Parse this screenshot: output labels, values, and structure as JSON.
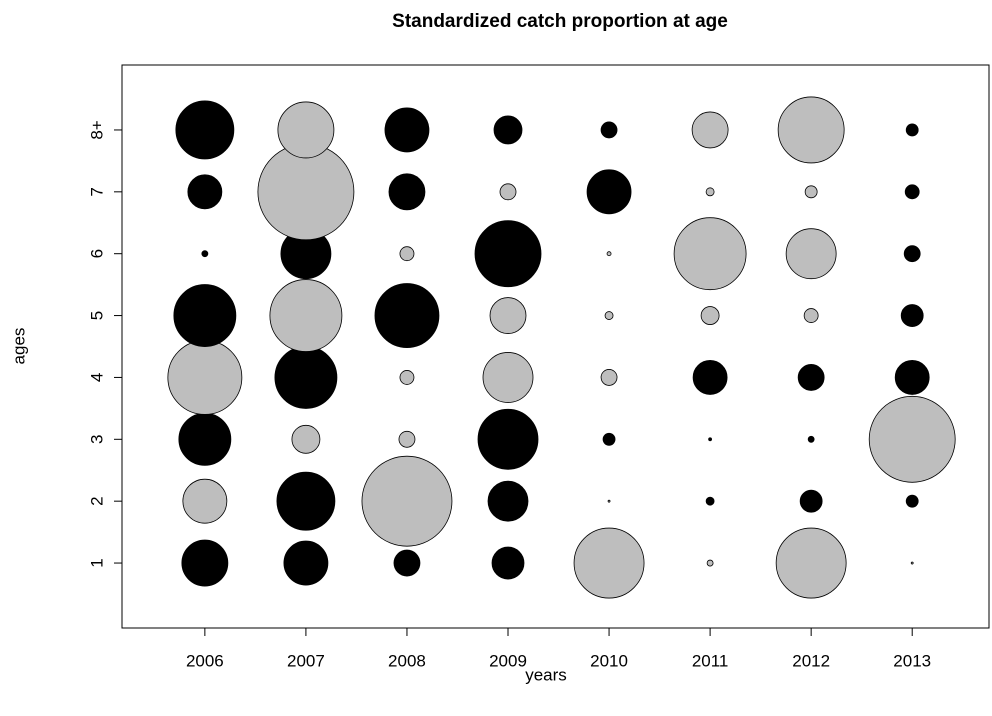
{
  "chart_data": {
    "type": "bubble",
    "title": "Standardized catch proportion at age",
    "x_label": "years",
    "y_label": "ages",
    "x": [
      2006,
      2007,
      2008,
      2009,
      2010,
      2011,
      2012,
      2013
    ],
    "y": [
      1,
      2,
      3,
      4,
      5,
      6,
      7,
      8
    ],
    "values": [
      [
        -2.3,
        -2.2,
        -1.3,
        -1.6,
        3.5,
        0.3,
        3.5,
        0.1
      ],
      [
        2.2,
        -2.9,
        4.5,
        -2.0,
        0.1,
        -0.4,
        -1.1,
        -0.6
      ],
      [
        -2.6,
        1.4,
        0.8,
        -3.0,
        -0.6,
        -0.15,
        -0.3,
        4.3
      ],
      [
        3.7,
        -3.1,
        0.7,
        2.5,
        0.8,
        -1.7,
        -1.3,
        -1.7
      ],
      [
        -3.1,
        3.6,
        -3.2,
        1.8,
        0.4,
        0.9,
        0.7,
        -1.1
      ],
      [
        -0.3,
        -2.5,
        0.7,
        -3.3,
        0.2,
        3.6,
        2.5,
        -0.8
      ],
      [
        -1.7,
        4.8,
        -1.8,
        0.8,
        -2.2,
        0.4,
        0.6,
        -0.7
      ],
      [
        -2.9,
        2.8,
        -2.2,
        -1.4,
        -0.8,
        1.8,
        3.3,
        -0.6
      ]
    ],
    "positive_color": "#bebebe",
    "negative_color": "#000000",
    "xlim": [
      2005.18,
      2013.76
    ],
    "xticks": [
      2006,
      2007,
      2008,
      2009,
      2010,
      2011,
      2012,
      2013
    ],
    "ylim": [
      -0.05,
      9.05
    ],
    "yticks": [
      1,
      2,
      3,
      4,
      5,
      6,
      7,
      {
        "value": 8,
        "label": "8+"
      }
    ]
  }
}
